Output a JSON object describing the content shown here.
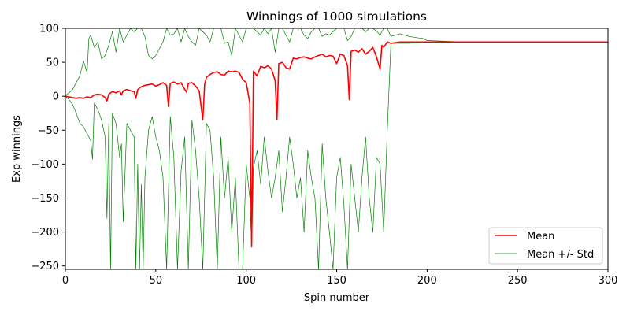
{
  "chart_data": {
    "type": "line",
    "title": "Winnings of 1000 simulations",
    "xlabel": "Spin number",
    "ylabel": "Exp winnings",
    "xlim": [
      0,
      300
    ],
    "ylim": [
      -255,
      100
    ],
    "xticks": [
      0,
      50,
      100,
      150,
      200,
      250,
      300
    ],
    "yticks": [
      100,
      50,
      0,
      -50,
      -100,
      -150,
      -200,
      -250
    ],
    "xtick_labels": [
      "0",
      "50",
      "100",
      "150",
      "200",
      "250",
      "300"
    ],
    "ytick_labels": [
      "100",
      "50",
      "0",
      "−50",
      "−100",
      "−150",
      "−200",
      "−250"
    ],
    "grid": false,
    "legend_position": "lower-right",
    "series": [
      {
        "name": "Mean",
        "color": "#ff0000",
        "x": [
          0,
          2,
          4,
          6,
          8,
          10,
          12,
          14,
          16,
          18,
          20,
          22,
          23,
          24,
          26,
          28,
          30,
          31,
          32,
          34,
          36,
          38,
          39,
          40,
          42,
          44,
          46,
          48,
          50,
          52,
          54,
          56,
          57,
          58,
          60,
          62,
          64,
          66,
          67,
          68,
          70,
          72,
          74,
          76,
          77,
          78,
          80,
          82,
          84,
          86,
          88,
          90,
          92,
          94,
          96,
          98,
          100,
          102,
          103,
          104,
          106,
          108,
          110,
          112,
          114,
          116,
          117,
          118,
          120,
          122,
          124,
          126,
          128,
          130,
          132,
          134,
          136,
          138,
          140,
          142,
          144,
          146,
          148,
          150,
          152,
          154,
          156,
          157,
          158,
          160,
          162,
          164,
          166,
          168,
          170,
          172,
          174,
          175,
          176,
          178,
          180,
          185,
          190,
          195,
          200,
          220,
          250,
          280,
          300
        ],
        "y": [
          0,
          -1,
          -2,
          -3,
          -2,
          -3,
          -1,
          -2,
          2,
          3,
          2,
          -2,
          -7,
          3,
          7,
          5,
          8,
          2,
          8,
          10,
          8,
          7,
          -3,
          10,
          14,
          16,
          17,
          18,
          15,
          17,
          20,
          16,
          -15,
          19,
          21,
          18,
          20,
          10,
          6,
          19,
          20,
          15,
          8,
          -35,
          17,
          28,
          32,
          35,
          36,
          32,
          31,
          37,
          36,
          37,
          35,
          25,
          20,
          -10,
          -222,
          37,
          30,
          44,
          42,
          45,
          40,
          23,
          -34,
          48,
          50,
          42,
          40,
          56,
          55,
          57,
          58,
          56,
          55,
          58,
          60,
          62,
          58,
          60,
          59,
          48,
          62,
          60,
          45,
          -5,
          66,
          68,
          65,
          70,
          62,
          66,
          72,
          58,
          40,
          75,
          72,
          80,
          78,
          80,
          80,
          80,
          80,
          80,
          80,
          80,
          80
        ]
      },
      {
        "name": "Mean +/- Std",
        "color": "#008000",
        "upper_x": [
          0,
          2,
          4,
          6,
          8,
          10,
          12,
          13,
          14,
          16,
          18,
          20,
          22,
          24,
          26,
          28,
          30,
          32,
          34,
          36,
          38,
          40,
          41,
          42,
          44,
          46,
          48,
          50,
          52,
          54,
          56,
          58,
          60,
          62,
          64,
          66,
          68,
          70,
          72,
          74,
          76,
          78,
          80,
          82,
          84,
          86,
          88,
          90,
          92,
          94,
          96,
          98,
          100,
          102,
          104,
          106,
          108,
          110,
          112,
          114,
          116,
          118,
          120,
          122,
          124,
          126,
          128,
          130,
          132,
          134,
          136,
          138,
          140,
          142,
          144,
          146,
          148,
          150,
          152,
          154,
          156,
          158,
          160,
          162,
          164,
          166,
          168,
          170,
          172,
          174,
          176,
          178,
          180,
          185,
          190,
          195,
          198,
          200,
          220,
          250,
          280,
          300
        ],
        "upper_y": [
          1,
          5,
          10,
          20,
          30,
          52,
          35,
          85,
          90,
          72,
          80,
          55,
          60,
          75,
          95,
          65,
          100,
          80,
          90,
          100,
          95,
          100,
          100,
          100,
          88,
          60,
          55,
          60,
          70,
          80,
          100,
          90,
          92,
          100,
          80,
          100,
          88,
          80,
          75,
          100,
          95,
          90,
          80,
          100,
          100,
          100,
          78,
          80,
          60,
          100,
          90,
          80,
          100,
          100,
          100,
          95,
          90,
          100,
          92,
          100,
          65,
          100,
          100,
          90,
          80,
          100,
          100,
          100,
          90,
          85,
          95,
          100,
          100,
          88,
          92,
          90,
          95,
          100,
          100,
          100,
          82,
          88,
          100,
          100,
          100,
          95,
          100,
          100,
          96,
          90,
          100,
          100,
          88,
          92,
          88,
          86,
          85,
          82,
          80,
          80,
          80,
          80
        ],
        "lower_x": [
          0,
          2,
          4,
          6,
          8,
          10,
          12,
          14,
          15,
          16,
          18,
          20,
          22,
          23,
          24,
          25,
          26,
          28,
          30,
          31,
          32,
          34,
          36,
          38,
          39,
          40,
          41,
          42,
          43,
          44,
          46,
          48,
          50,
          52,
          54,
          56,
          58,
          60,
          62,
          64,
          66,
          68,
          70,
          72,
          74,
          76,
          78,
          80,
          82,
          84,
          86,
          88,
          90,
          92,
          94,
          96,
          98,
          100,
          102,
          103,
          104,
          106,
          108,
          110,
          112,
          114,
          116,
          118,
          120,
          122,
          124,
          126,
          128,
          130,
          132,
          134,
          136,
          138,
          140,
          142,
          144,
          146,
          148,
          150,
          152,
          154,
          156,
          158,
          160,
          162,
          164,
          166,
          168,
          170,
          172,
          174,
          176,
          178,
          180,
          185,
          190,
          195,
          200,
          220,
          250,
          280,
          300
        ],
        "lower_y": [
          0,
          -5,
          -12,
          -25,
          -40,
          -45,
          -55,
          -65,
          -93,
          -10,
          -20,
          -35,
          -60,
          -180,
          -40,
          -255,
          -25,
          -40,
          -90,
          -70,
          -185,
          -40,
          -50,
          -60,
          -255,
          -100,
          -255,
          -130,
          -255,
          -120,
          -50,
          -30,
          -60,
          -80,
          -120,
          -255,
          -30,
          -90,
          -255,
          -110,
          -60,
          -255,
          -35,
          -80,
          -150,
          -255,
          -40,
          -50,
          -120,
          -255,
          -60,
          -150,
          -90,
          -200,
          -120,
          -255,
          -255,
          -100,
          -150,
          -222,
          -105,
          -80,
          -130,
          -60,
          -110,
          -150,
          -120,
          -80,
          -170,
          -120,
          -60,
          -100,
          -150,
          -120,
          -200,
          -80,
          -120,
          -150,
          -255,
          -70,
          -150,
          -200,
          -255,
          -120,
          -90,
          -160,
          -255,
          -100,
          -150,
          -200,
          -120,
          -60,
          -150,
          -200,
          -90,
          -100,
          -200,
          -50,
          78,
          78,
          78,
          79,
          80,
          80,
          80,
          80,
          80
        ]
      }
    ],
    "legend": {
      "entries": [
        "Mean",
        "Mean +/- Std"
      ]
    }
  }
}
